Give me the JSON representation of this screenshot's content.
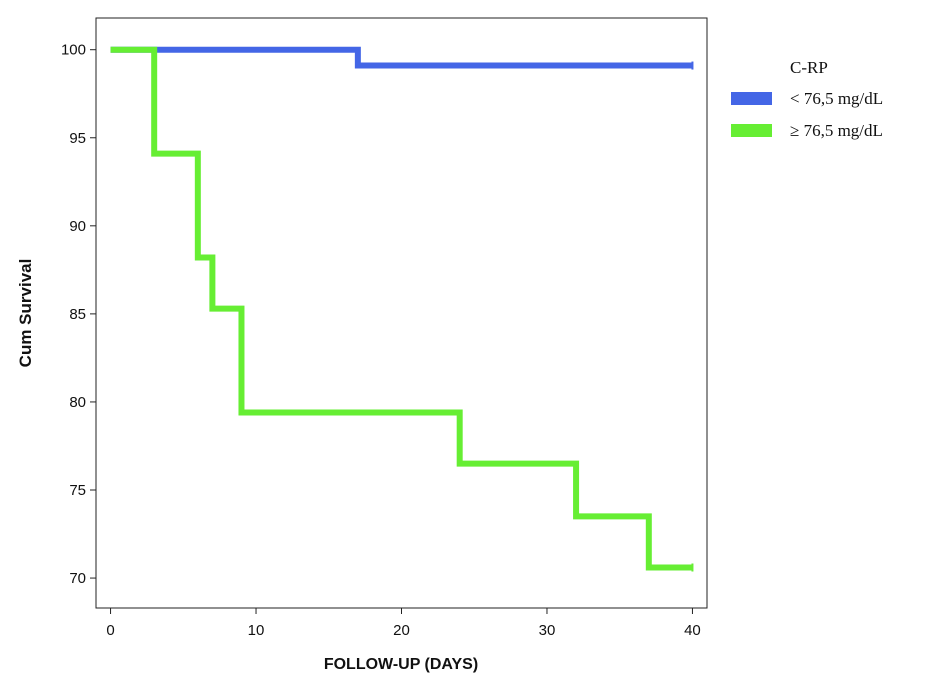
{
  "chart_data": {
    "type": "line",
    "title": "",
    "xlabel": "FOLLOW-UP (DAYS)",
    "ylabel": "Cum Survival",
    "xlim": [
      -1,
      41
    ],
    "ylim": [
      68.3,
      101.8
    ],
    "xticks": [
      0,
      10,
      20,
      30,
      40
    ],
    "yticks": [
      70,
      75,
      80,
      85,
      90,
      95,
      100
    ],
    "grid": false,
    "legend_title": "C-RP",
    "legend_position": "right",
    "series": [
      {
        "name": "< 76,5 mg/dL",
        "color": "#4466e6",
        "step": true,
        "points": [
          [
            0,
            100
          ],
          [
            17,
            100
          ],
          [
            17,
            99.1
          ],
          [
            40,
            99.1
          ]
        ]
      },
      {
        "name": "≥ 76,5 mg/dL",
        "color": "#66ee33",
        "step": true,
        "points": [
          [
            0,
            100
          ],
          [
            3,
            100
          ],
          [
            3,
            94.1
          ],
          [
            6,
            94.1
          ],
          [
            6,
            88.2
          ],
          [
            7,
            88.2
          ],
          [
            7,
            85.3
          ],
          [
            9,
            85.3
          ],
          [
            9,
            79.4
          ],
          [
            24,
            79.4
          ],
          [
            24,
            76.5
          ],
          [
            32,
            76.5
          ],
          [
            32,
            73.5
          ],
          [
            37,
            73.5
          ],
          [
            37,
            70.6
          ],
          [
            40,
            70.6
          ]
        ]
      }
    ]
  }
}
